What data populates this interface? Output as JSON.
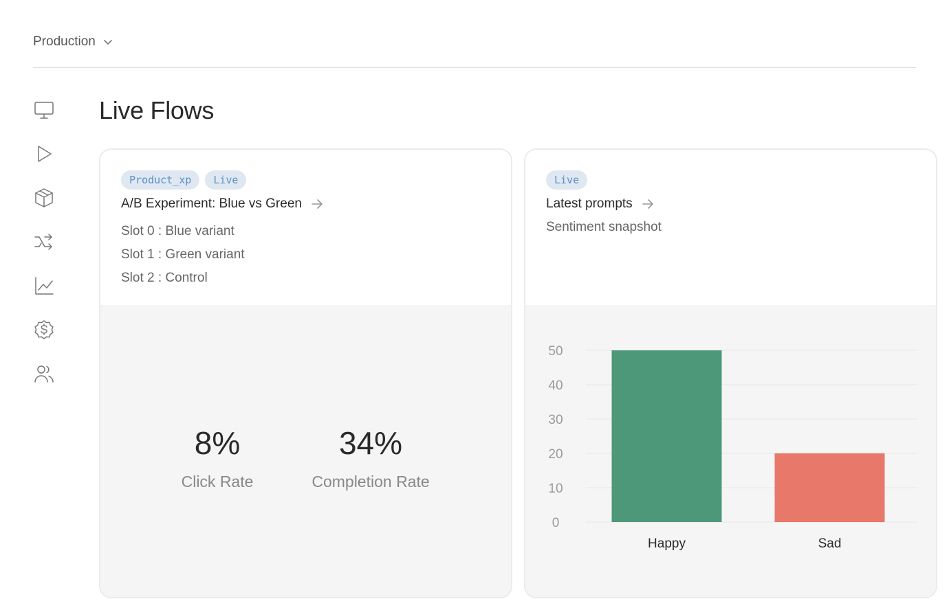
{
  "header": {
    "environment": "Production"
  },
  "sidebar": {
    "items": [
      {
        "icon": "monitor-icon"
      },
      {
        "icon": "play-icon"
      },
      {
        "icon": "package-icon"
      },
      {
        "icon": "shuffle-icon"
      },
      {
        "icon": "line-chart-icon"
      },
      {
        "icon": "dollar-badge-icon"
      },
      {
        "icon": "users-icon"
      }
    ]
  },
  "page": {
    "title": "Live Flows"
  },
  "cards": {
    "experiment": {
      "tags": [
        "Product_xp",
        "Live"
      ],
      "title": "A/B Experiment: Blue vs Green",
      "slots": [
        "Slot 0 : Blue variant",
        "Slot 1 : Green variant",
        "Slot 2 : Control"
      ],
      "metrics": [
        {
          "value": "8%",
          "label": "Click Rate"
        },
        {
          "value": "34%",
          "label": "Completion Rate"
        }
      ]
    },
    "prompts": {
      "tags": [
        "Live"
      ],
      "title": "Latest prompts",
      "subtitle": "Sentiment snapshot"
    }
  },
  "colors": {
    "tag_bg": "#dfe8f1",
    "tag_text": "#5b8fc4",
    "happy": "#4d9879",
    "sad": "#e8786a"
  },
  "chart_data": {
    "type": "bar",
    "categories": [
      "Happy",
      "Sad"
    ],
    "values": [
      50,
      20
    ],
    "colors": [
      "#4d9879",
      "#e8786a"
    ],
    "yticks": [
      0,
      10,
      20,
      30,
      40,
      50
    ],
    "ylim": [
      0,
      50
    ],
    "grid": true
  }
}
